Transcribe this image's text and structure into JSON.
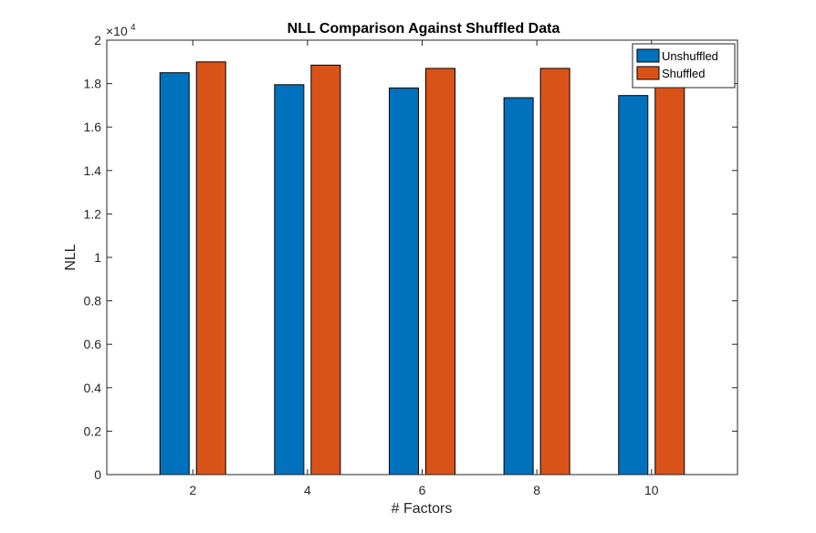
{
  "chart_data": {
    "type": "bar",
    "title": "NLL Comparison Against Shuffled Data",
    "xlabel": "# Factors",
    "ylabel": "NLL",
    "exponent_label": "×10",
    "exponent_power": "4",
    "categories": [
      "2",
      "4",
      "6",
      "8",
      "10"
    ],
    "ylim": [
      0,
      2
    ],
    "yticks": [
      "0",
      "0.2",
      "0.4",
      "0.6",
      "0.8",
      "1",
      "1.2",
      "1.4",
      "1.6",
      "1.8",
      "2"
    ],
    "series": [
      {
        "name": "Unshuffled",
        "color": "#0072BD",
        "values": [
          1.85,
          1.795,
          1.78,
          1.735,
          1.745
        ]
      },
      {
        "name": "Shuffled",
        "color": "#D95319",
        "values": [
          1.9,
          1.885,
          1.87,
          1.87,
          1.87
        ]
      }
    ],
    "legend_position": "top-right",
    "grid": false
  }
}
